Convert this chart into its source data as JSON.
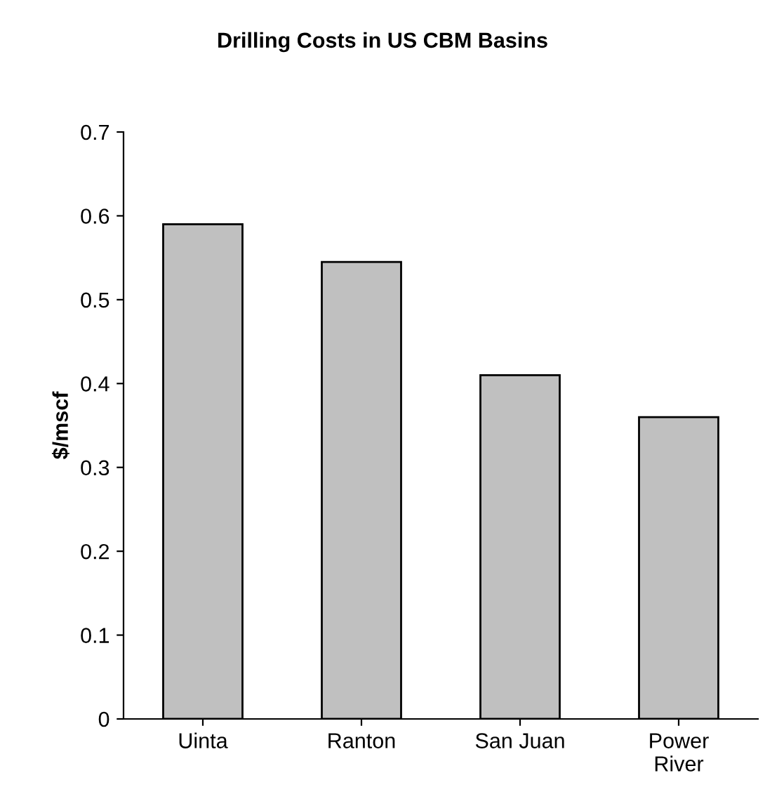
{
  "chart_data": {
    "type": "bar",
    "title": "Drilling Costs in US CBM Basins",
    "ylabel": "$/mscf",
    "categories": [
      "Uinta",
      "Ranton",
      "San Juan",
      "Power\nRiver"
    ],
    "values": [
      0.59,
      0.545,
      0.41,
      0.36
    ],
    "color": "#c0c0c0",
    "ylim": [
      0,
      0.7
    ],
    "yticks": [
      0,
      0.1,
      0.2,
      0.3,
      0.4,
      0.5,
      0.6,
      0.7
    ],
    "grid": false
  }
}
